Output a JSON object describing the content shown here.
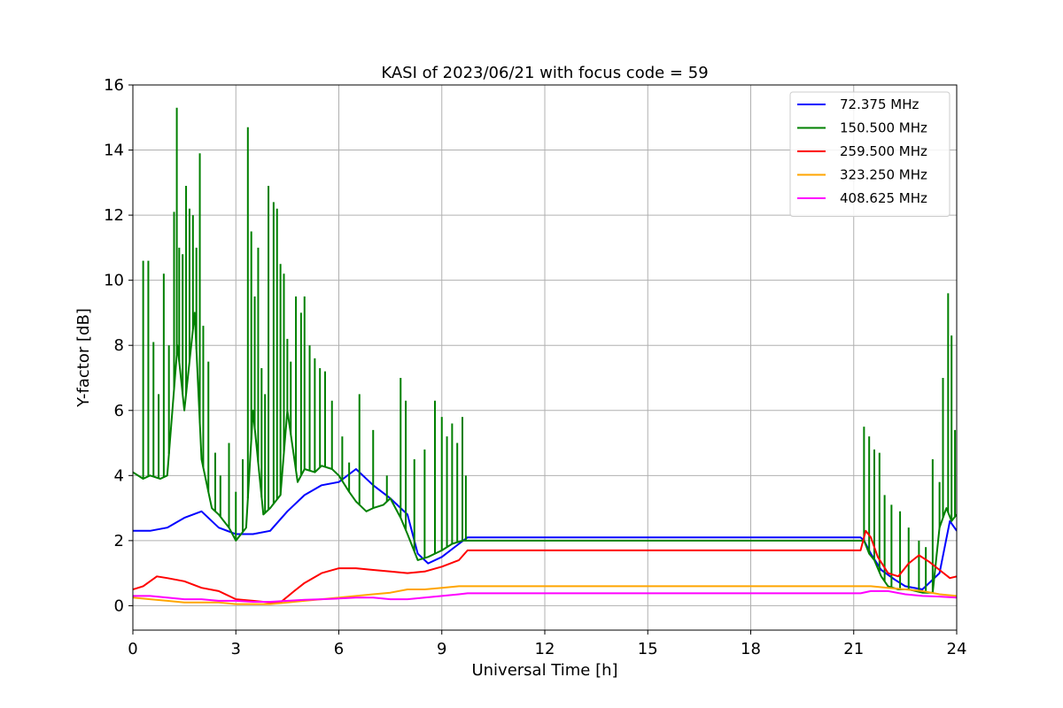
{
  "chart_data": {
    "type": "line",
    "title": "KASI of 2023/06/21 with focus code = 59",
    "xlabel": "Universal Time [h]",
    "ylabel": "Y-factor [dB]",
    "xlim": [
      0,
      24
    ],
    "ylim": [
      -0.75,
      16
    ],
    "xticks": [
      0,
      3,
      6,
      9,
      12,
      15,
      18,
      21,
      24
    ],
    "yticks": [
      0,
      2,
      4,
      6,
      8,
      10,
      12,
      14,
      16
    ],
    "grid": true,
    "legend_position": "top-right",
    "series": [
      {
        "name": "  72.375 MHz",
        "color": "#0000ff",
        "x": [
          0,
          0.5,
          1.0,
          1.5,
          2.0,
          2.5,
          3.0,
          3.5,
          4.0,
          4.5,
          5.0,
          5.5,
          6.0,
          6.5,
          7.0,
          7.5,
          8.0,
          8.3,
          8.6,
          9.0,
          9.5,
          9.75,
          21.2,
          21.3,
          21.5,
          21.8,
          22.2,
          22.5,
          23.0,
          23.5,
          23.8,
          24.0
        ],
        "y": [
          2.3,
          2.3,
          2.4,
          2.7,
          2.9,
          2.4,
          2.2,
          2.2,
          2.3,
          2.9,
          3.4,
          3.7,
          3.8,
          4.2,
          3.7,
          3.3,
          2.8,
          1.6,
          1.3,
          1.5,
          1.9,
          2.1,
          2.1,
          2.0,
          1.6,
          1.1,
          0.8,
          0.6,
          0.5,
          1.0,
          2.6,
          2.3
        ]
      },
      {
        "name": "150.500 MHz",
        "color": "#008000",
        "x": [
          0,
          0.3,
          0.5,
          0.8,
          1.0,
          1.3,
          1.5,
          1.8,
          2.0,
          2.3,
          2.5,
          2.8,
          3.0,
          3.3,
          3.5,
          3.8,
          4.0,
          4.3,
          4.5,
          4.8,
          5.0,
          5.3,
          5.5,
          5.8,
          6.0,
          6.3,
          6.5,
          6.8,
          7.0,
          7.3,
          7.5,
          7.8,
          8.0,
          8.3,
          8.6,
          9.0,
          9.3,
          9.6,
          9.75,
          21.2,
          21.3,
          21.45,
          21.6,
          21.8,
          22.0,
          22.3,
          22.6,
          23.0,
          23.3,
          23.5,
          23.7,
          23.85,
          24.0
        ],
        "y": [
          4.1,
          3.9,
          4.0,
          3.9,
          4.0,
          8.0,
          6.0,
          9.0,
          4.5,
          3.0,
          2.8,
          2.4,
          2.0,
          2.4,
          6.0,
          2.8,
          3.0,
          3.4,
          6.0,
          3.8,
          4.2,
          4.1,
          4.3,
          4.2,
          4.0,
          3.5,
          3.2,
          2.9,
          3.0,
          3.1,
          3.3,
          2.7,
          2.2,
          1.4,
          1.5,
          1.7,
          1.9,
          2.0,
          2.0,
          2.0,
          2.0,
          1.6,
          1.4,
          0.9,
          0.6,
          0.5,
          0.5,
          0.4,
          0.4,
          2.4,
          3.0,
          2.6,
          2.8
        ]
      },
      {
        "name": "259.500 MHz",
        "color": "#ff0000",
        "x": [
          0,
          0.3,
          0.7,
          1.0,
          1.5,
          2.0,
          2.5,
          3.0,
          3.5,
          4.0,
          4.3,
          4.7,
          5.0,
          5.5,
          6.0,
          6.5,
          7.0,
          7.5,
          8.0,
          8.5,
          9.0,
          9.5,
          9.75,
          21.2,
          21.35,
          21.5,
          21.7,
          22.0,
          22.3,
          22.6,
          22.9,
          23.2,
          23.5,
          23.8,
          24.0
        ],
        "y": [
          0.5,
          0.6,
          0.9,
          0.85,
          0.75,
          0.55,
          0.45,
          0.2,
          0.15,
          0.1,
          0.1,
          0.45,
          0.7,
          1.0,
          1.15,
          1.15,
          1.1,
          1.05,
          1.0,
          1.05,
          1.2,
          1.4,
          1.7,
          1.7,
          2.3,
          2.1,
          1.5,
          1.0,
          0.9,
          1.3,
          1.55,
          1.35,
          1.1,
          0.85,
          0.9
        ]
      },
      {
        "name": "323.250 MHz",
        "color": "#ffa500",
        "x": [
          0,
          0.5,
          1.0,
          1.5,
          2.0,
          2.5,
          3.0,
          3.5,
          4.0,
          4.5,
          5.0,
          5.5,
          6.0,
          6.5,
          7.0,
          7.5,
          8.0,
          8.5,
          9.0,
          9.5,
          9.75,
          21.2,
          21.5,
          22.0,
          22.5,
          23.0,
          23.5,
          24.0
        ],
        "y": [
          0.25,
          0.2,
          0.15,
          0.1,
          0.1,
          0.1,
          0.05,
          0.05,
          0.05,
          0.1,
          0.15,
          0.2,
          0.25,
          0.3,
          0.35,
          0.4,
          0.5,
          0.5,
          0.55,
          0.6,
          0.6,
          0.6,
          0.6,
          0.55,
          0.5,
          0.45,
          0.35,
          0.3
        ]
      },
      {
        "name": "408.625 MHz",
        "color": "#ff00ff",
        "x": [
          0,
          0.5,
          1.0,
          1.5,
          2.0,
          2.5,
          3.0,
          3.5,
          4.0,
          4.5,
          5.0,
          5.5,
          6.0,
          6.5,
          7.0,
          7.5,
          8.0,
          8.5,
          9.0,
          9.5,
          9.75,
          21.2,
          21.5,
          22.0,
          22.5,
          23.0,
          23.5,
          24.0
        ],
        "y": [
          0.3,
          0.3,
          0.25,
          0.2,
          0.2,
          0.15,
          0.15,
          0.12,
          0.12,
          0.15,
          0.18,
          0.2,
          0.22,
          0.25,
          0.25,
          0.2,
          0.2,
          0.25,
          0.3,
          0.35,
          0.38,
          0.38,
          0.45,
          0.45,
          0.35,
          0.3,
          0.28,
          0.25
        ]
      }
    ],
    "spikes": {
      "150.500 MHz": {
        "color": "#008000",
        "x": [
          0.3,
          0.45,
          0.6,
          0.75,
          0.9,
          1.05,
          1.2,
          1.28,
          1.35,
          1.45,
          1.55,
          1.65,
          1.75,
          1.85,
          1.95,
          2.05,
          2.2,
          2.4,
          2.55,
          2.8,
          3.0,
          3.2,
          3.35,
          3.45,
          3.55,
          3.65,
          3.75,
          3.85,
          3.95,
          4.1,
          4.2,
          4.3,
          4.4,
          4.5,
          4.6,
          4.75,
          4.9,
          5.0,
          5.15,
          5.3,
          5.45,
          5.6,
          5.8,
          6.1,
          6.3,
          6.6,
          7.0,
          7.4,
          7.8,
          7.95,
          8.2,
          8.5,
          8.8,
          9.0,
          9.15,
          9.3,
          9.45,
          9.6,
          9.7,
          21.3,
          21.45,
          21.6,
          21.75,
          21.9,
          22.1,
          22.35,
          22.6,
          22.9,
          23.1,
          23.3,
          23.5,
          23.6,
          23.75,
          23.85,
          23.95
        ],
        "y": [
          10.6,
          10.6,
          8.1,
          6.5,
          10.2,
          8.0,
          12.1,
          15.3,
          11.0,
          10.8,
          12.9,
          12.2,
          12.0,
          11.0,
          13.9,
          8.6,
          7.5,
          4.7,
          4.0,
          5.0,
          3.5,
          4.5,
          14.7,
          11.5,
          9.5,
          11.0,
          7.3,
          6.5,
          12.9,
          12.4,
          12.2,
          10.5,
          10.2,
          8.2,
          7.5,
          9.5,
          9.0,
          9.5,
          8.0,
          7.6,
          7.3,
          7.2,
          6.3,
          5.2,
          4.4,
          6.5,
          5.4,
          4.0,
          7.0,
          6.3,
          4.5,
          4.8,
          6.3,
          5.8,
          5.2,
          5.6,
          5.0,
          5.8,
          4.0,
          5.5,
          5.2,
          4.8,
          4.7,
          3.4,
          3.1,
          2.9,
          2.4,
          2.0,
          1.8,
          4.5,
          3.8,
          7.0,
          9.6,
          8.3,
          5.4
        ]
      }
    }
  }
}
